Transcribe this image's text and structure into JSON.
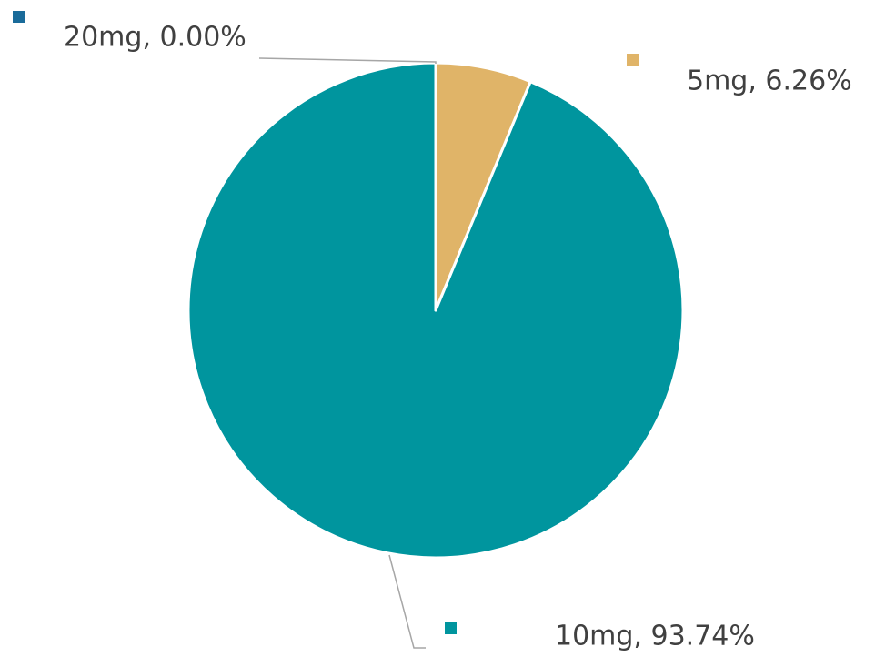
{
  "chart_data": {
    "type": "pie",
    "categories": [
      "5mg",
      "10mg",
      "20mg"
    ],
    "values": [
      6.26,
      93.74,
      0.0
    ],
    "value_labels": [
      "5mg, 6.26%",
      "10mg, 93.74%",
      "20mg, 0.00%"
    ],
    "colors": [
      "#e0b468",
      "#00959e",
      "#1a6b9a"
    ]
  }
}
